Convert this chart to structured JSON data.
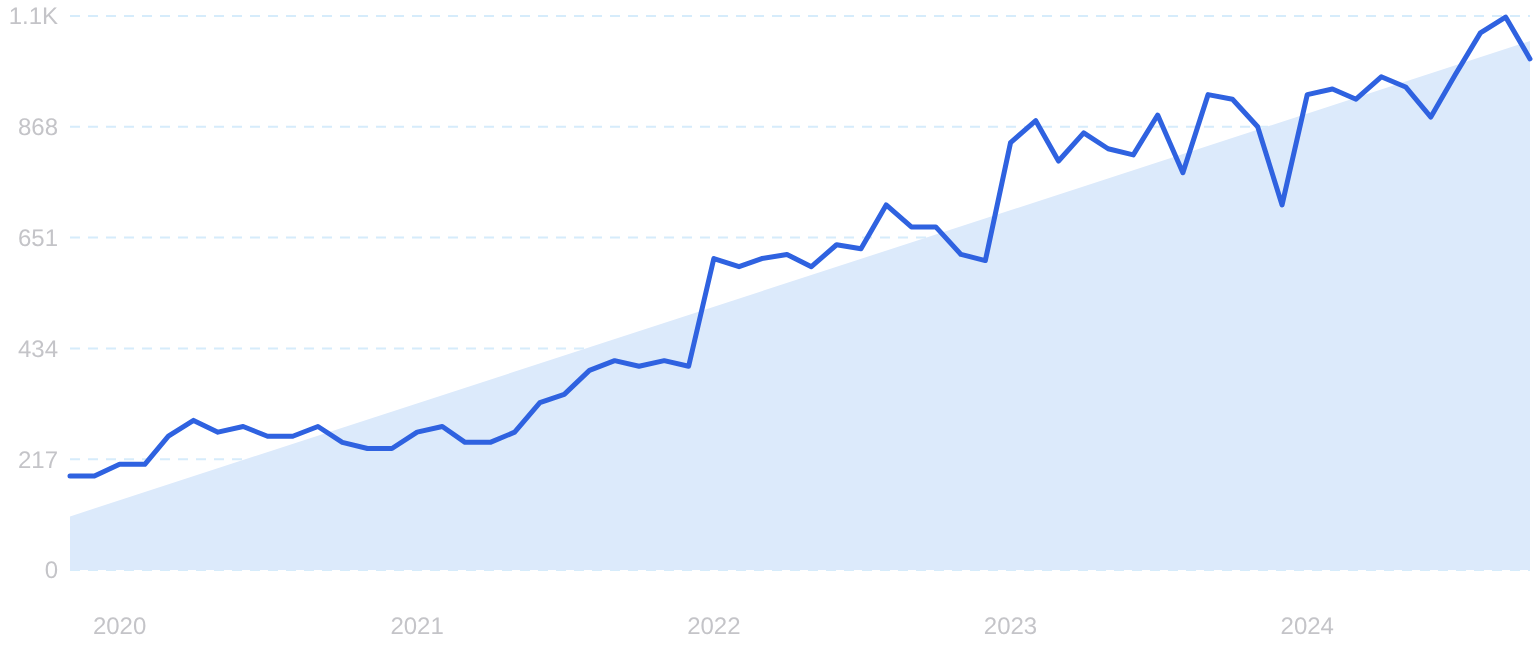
{
  "chart_data": {
    "type": "line",
    "xlim": [
      "2019-11",
      "2024-10"
    ],
    "xticks": [
      "2020",
      "2021",
      "2022",
      "2023",
      "2024"
    ],
    "ylim": [
      0,
      1085
    ],
    "yticks": [
      0,
      217,
      434,
      651,
      868,
      {
        "value": 1085,
        "label": "1.1K"
      }
    ],
    "grid": "y",
    "marker": "none",
    "line_style": "solid",
    "series": [
      {
        "type": "area",
        "color": "#dceafb",
        "x": [
          "2019-11",
          "2024-10"
        ],
        "values": [
          105,
          1036
        ]
      },
      {
        "color": "#2f62e0",
        "x": [
          "2019-11",
          "2019-12",
          "2020-01",
          "2020-02",
          "2020-03",
          "2020-04",
          "2020-05",
          "2020-06",
          "2020-07",
          "2020-08",
          "2020-09",
          "2020-10",
          "2020-11",
          "2020-12",
          "2021-01",
          "2021-02",
          "2021-03",
          "2021-04",
          "2021-05",
          "2021-06",
          "2021-07",
          "2021-08",
          "2021-09",
          "2021-10",
          "2021-11",
          "2021-12",
          "2022-01",
          "2022-02",
          "2022-03",
          "2022-04",
          "2022-05",
          "2022-06",
          "2022-07",
          "2022-08",
          "2022-09",
          "2022-10",
          "2022-11",
          "2022-12",
          "2023-01",
          "2023-02",
          "2023-03",
          "2023-04",
          "2023-05",
          "2023-06",
          "2023-07",
          "2023-08",
          "2023-09",
          "2023-10",
          "2023-11",
          "2023-12",
          "2024-01",
          "2024-02",
          "2024-03",
          "2024-04",
          "2024-05",
          "2024-06",
          "2024-07",
          "2024-08",
          "2024-09",
          "2024-10"
        ],
        "values": [
          184,
          184,
          207,
          207,
          262,
          293,
          270,
          281,
          262,
          262,
          281,
          250,
          238,
          238,
          270,
          281,
          250,
          250,
          270,
          328,
          344,
          391,
          410,
          399,
          410,
          399,
          610,
          594,
          610,
          618,
          594,
          637,
          629,
          715,
          672,
          672,
          618,
          606,
          837,
          880,
          801,
          856,
          825,
          813,
          891,
          778,
          931,
          922,
          868,
          715,
          931,
          942,
          922,
          966,
          946,
          887,
          970,
          1052,
          1083,
          1001
        ]
      }
    ]
  }
}
